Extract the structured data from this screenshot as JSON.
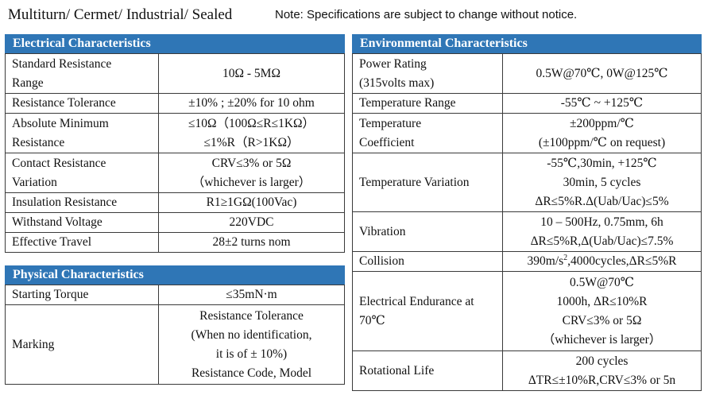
{
  "header": {
    "title": "Multiturn/ Cermet/ Industrial/ Sealed",
    "note": "Note: Specifications are subject to change without notice."
  },
  "electrical": {
    "title": "Electrical Characteristics",
    "rows": [
      {
        "label": [
          "Standard Resistance",
          "Range"
        ],
        "value": [
          "10Ω - 5MΩ"
        ]
      },
      {
        "label": [
          "Resistance Tolerance"
        ],
        "value": [
          "±10% ; ±20% for 10 ohm"
        ]
      },
      {
        "label": [
          "Absolute Minimum",
          "Resistance"
        ],
        "value": [
          "≤10Ω（100Ω≤R≤1KΩ）",
          "≤1%R（R>1KΩ）"
        ]
      },
      {
        "label": [
          "Contact Resistance",
          "Variation"
        ],
        "value": [
          "CRV≤3% or 5Ω",
          "（whichever is larger）"
        ]
      },
      {
        "label": [
          "Insulation Resistance"
        ],
        "value": [
          "R1≥1GΩ(100Vac)"
        ]
      },
      {
        "label": [
          "Withstand Voltage"
        ],
        "value": [
          "220VDC"
        ]
      },
      {
        "label": [
          "Effective Travel"
        ],
        "value": [
          "28±2 turns nom"
        ]
      }
    ]
  },
  "physical": {
    "title": "Physical Characteristics",
    "rows": [
      {
        "label": [
          "Starting Torque"
        ],
        "value": [
          "≤35mN·m"
        ]
      },
      {
        "label": [
          "Marking"
        ],
        "value": [
          "Resistance Tolerance",
          "(When no identification,",
          "it is of ± 10%)",
          "Resistance Code, Model"
        ]
      }
    ]
  },
  "environmental": {
    "title": "Environmental Characteristics",
    "rows": [
      {
        "label": [
          "Power Rating",
          "(315volts max)"
        ],
        "value": [
          "0.5W@70℃, 0W@125℃"
        ]
      },
      {
        "label": [
          "Temperature Range"
        ],
        "value": [
          "-55℃ ~ +125℃"
        ]
      },
      {
        "label": [
          "Temperature",
          "Coefficient"
        ],
        "value": [
          "±200ppm/℃",
          "(±100ppm/℃ on request)"
        ]
      },
      {
        "label": [
          "Temperature Variation"
        ],
        "value": [
          "-55℃,30min, +125℃",
          "30min, 5 cycles",
          "ΔR≤5%R.Δ(Uab/Uac)≤5%"
        ]
      },
      {
        "label": [
          "Vibration"
        ],
        "value": [
          "10 – 500Hz, 0.75mm, 6h",
          "ΔR≤5%R,Δ(Uab/Uac)≤7.5%"
        ]
      },
      {
        "label": [
          "Collision"
        ],
        "value": [
          "390m/s",
          "2",
          ",4000cycles,ΔR≤5%R"
        ]
      },
      {
        "label": [
          "Electrical Endurance at",
          "70℃"
        ],
        "value": [
          "0.5W@70℃",
          "1000h, ΔR≤10%R",
          "CRV≤3% or 5Ω",
          "（whichever is larger）"
        ]
      },
      {
        "label": [
          "Rotational Life"
        ],
        "value": [
          "200 cycles",
          "ΔTR≤±10%R,CRV≤3% or 5n"
        ]
      }
    ]
  }
}
